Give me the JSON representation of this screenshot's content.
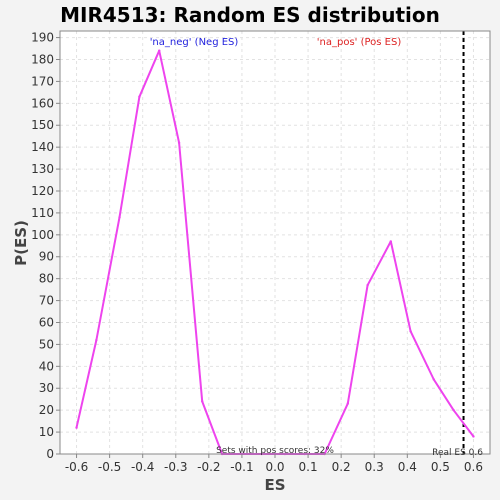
{
  "chart_data": {
    "type": "line",
    "title": "MIR4513: Random ES distribution",
    "xlabel": "ES",
    "ylabel": "P(ES)",
    "xlim": [
      -0.65,
      0.65
    ],
    "ylim": [
      0,
      193
    ],
    "x_ticks": [
      "-0.6",
      "-0.5",
      "-0.4",
      "-0.3",
      "-0.2",
      "-0.1",
      "0.0",
      "0.1",
      "0.2",
      "0.3",
      "0.4",
      "0.5",
      "0.6"
    ],
    "y_ticks": [
      "0",
      "10",
      "20",
      "30",
      "40",
      "50",
      "60",
      "70",
      "80",
      "90",
      "100",
      "110",
      "120",
      "130",
      "140",
      "150",
      "160",
      "170",
      "180",
      "190"
    ],
    "grid": true,
    "series": [
      {
        "color": "#ee44ee",
        "x": [
          -0.6,
          -0.54,
          -0.47,
          -0.41,
          -0.35,
          -0.29,
          -0.22,
          -0.16,
          -0.1,
          -0.04,
          0.03,
          0.09,
          0.15,
          0.22,
          0.28,
          0.35,
          0.41,
          0.48,
          0.54,
          0.6
        ],
        "y": [
          12,
          52,
          108,
          163,
          184,
          142,
          24,
          0,
          0,
          0,
          0,
          0,
          0,
          23,
          77,
          97,
          56,
          34,
          20,
          8
        ]
      }
    ],
    "annotations": {
      "neg_label": "'na_neg' (Neg ES)",
      "pos_label": "'na_pos' (Pos ES)",
      "pos_scores": "Sets with pos scores: 32%",
      "real_es": "Real ES 0.6",
      "real_es_value": 0.57
    },
    "colors": {
      "neg": "#2222dd",
      "pos": "#dd2222",
      "line": "#ee44ee",
      "real_es_line": "#000000"
    }
  }
}
